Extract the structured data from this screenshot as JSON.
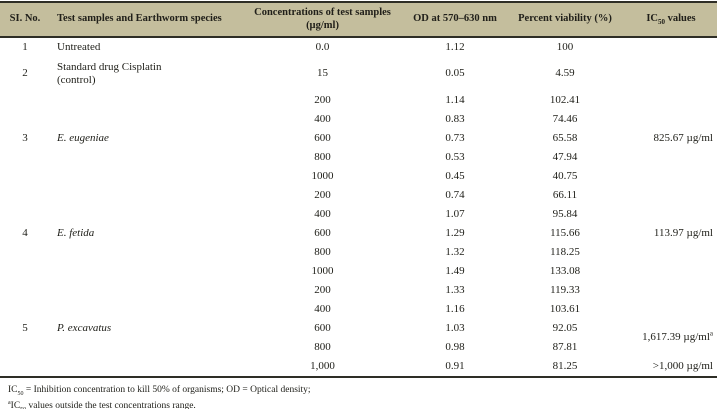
{
  "colors": {
    "header_background": "#c4be9d",
    "rule_lines": "#2e2e26",
    "body_text": "#1e1e18"
  },
  "header": {
    "si": "SI. No.",
    "species": "Test samples and Earthworm species",
    "conc_l1": "Concentrations of test samples",
    "conc_l2": "(µg/ml)",
    "od": "OD at 570–630 nm",
    "viability": "Percent viability (%)",
    "ic50_pre": "IC",
    "ic50_sub": "50",
    "ic50_post": " values"
  },
  "rows": [
    {
      "si": "1",
      "species": "Untreated",
      "conc": "0.0",
      "od": "1.12",
      "via": "100",
      "ic50": ""
    },
    {
      "si": "2",
      "species_l1": "Standard drug Cisplatin",
      "species_l2": "(control)",
      "conc": "15",
      "od": "0.05",
      "via": "4.59",
      "ic50": ""
    },
    {
      "si": "3",
      "species": "E. eugeniae",
      "conc": "200",
      "od": "1.14",
      "via": "102.41",
      "ic50": "825.67 µg/ml"
    },
    {
      "conc": "400",
      "od": "0.83",
      "via": "74.46"
    },
    {
      "conc": "600",
      "od": "0.73",
      "via": "65.58"
    },
    {
      "conc": "800",
      "od": "0.53",
      "via": "47.94"
    },
    {
      "conc": "1000",
      "od": "0.45",
      "via": "40.75"
    },
    {
      "si": "4",
      "species": "E. fetida",
      "conc": "200",
      "od": "0.74",
      "via": "66.11",
      "ic50": "113.97 µg/ml"
    },
    {
      "conc": "400",
      "od": "1.07",
      "via": "95.84"
    },
    {
      "conc": "600",
      "od": "1.29",
      "via": "115.66"
    },
    {
      "conc": "800",
      "od": "1.32",
      "via": "118.25"
    },
    {
      "conc": "1000",
      "od": "1.49",
      "via": "133.08"
    },
    {
      "si": "5",
      "species": "P. excavatus",
      "conc": "200",
      "od": "1.33",
      "via": "119.33",
      "ic50": ""
    },
    {
      "conc": "400",
      "od": "1.16",
      "via": "103.61",
      "ic50": ""
    },
    {
      "conc": "600",
      "od": "1.03",
      "via": "92.05",
      "ic50": "1,617.39 µg/ml",
      "ic50_sup": "a"
    },
    {
      "conc": "800",
      "od": "0.98",
      "via": "87.81"
    },
    {
      "conc": "1,000",
      "od": "0.91",
      "via": "81.25",
      "ic50": ">1,000 µg/ml"
    }
  ],
  "footnotes": {
    "line1_pre": "IC",
    "line1_sub": "50",
    "line1_rest": " = Inhibition concentration to kill 50% of organisms; OD = Optical density;",
    "line2_sup": "a",
    "line2_pre": "IC",
    "line2_sub": "50",
    "line2_rest": " values outside the test concentrations range."
  }
}
